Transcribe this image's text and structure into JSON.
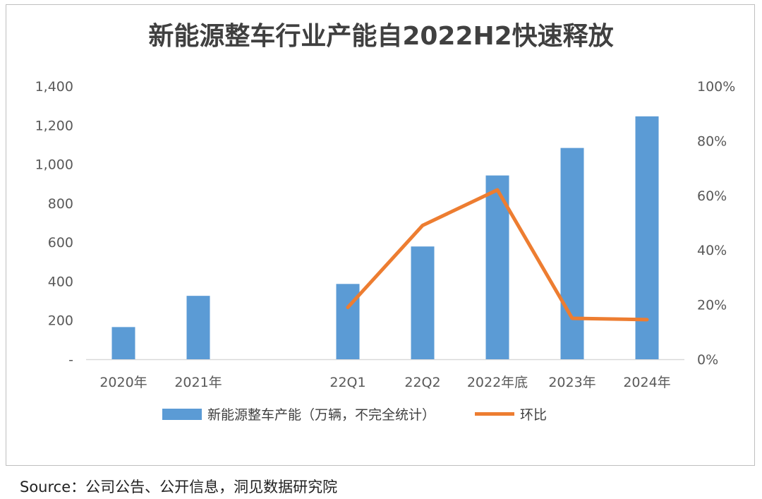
{
  "chart_data": {
    "type": "bar",
    "title": "新能源整车行业产能自2022H2快速释放",
    "categories": [
      "2020年",
      "2021年",
      "",
      "22Q1",
      "22Q2",
      "2022年底",
      "2023年",
      "2024年"
    ],
    "series": [
      {
        "name": "新能源整车产能（万辆，不完全统计）",
        "type": "bar",
        "axis": "left",
        "color": "#5b9bd5",
        "values": [
          165,
          325,
          null,
          386,
          578,
          942,
          1083,
          1245
        ]
      },
      {
        "name": "环比",
        "type": "line",
        "axis": "right",
        "color": "#ed7d31",
        "values": [
          null,
          null,
          null,
          0.19,
          0.49,
          0.62,
          0.15,
          0.145
        ]
      }
    ],
    "y_left": {
      "ylim": [
        0,
        1400
      ],
      "ticks": [
        0,
        200,
        400,
        600,
        800,
        1000,
        1200,
        1400
      ],
      "tick_labels": [
        "-",
        "200",
        "400",
        "600",
        "800",
        "1,000",
        "1,200",
        "1,400"
      ]
    },
    "y_right": {
      "ylim": [
        0,
        1
      ],
      "ticks": [
        0,
        0.2,
        0.4,
        0.6,
        0.8,
        1.0
      ],
      "tick_labels": [
        "0%",
        "20%",
        "40%",
        "60%",
        "80%",
        "100%"
      ]
    },
    "grid": false,
    "legend": "bottom"
  },
  "source": "Source：公司公告、公开信息，洞见数据研究院"
}
